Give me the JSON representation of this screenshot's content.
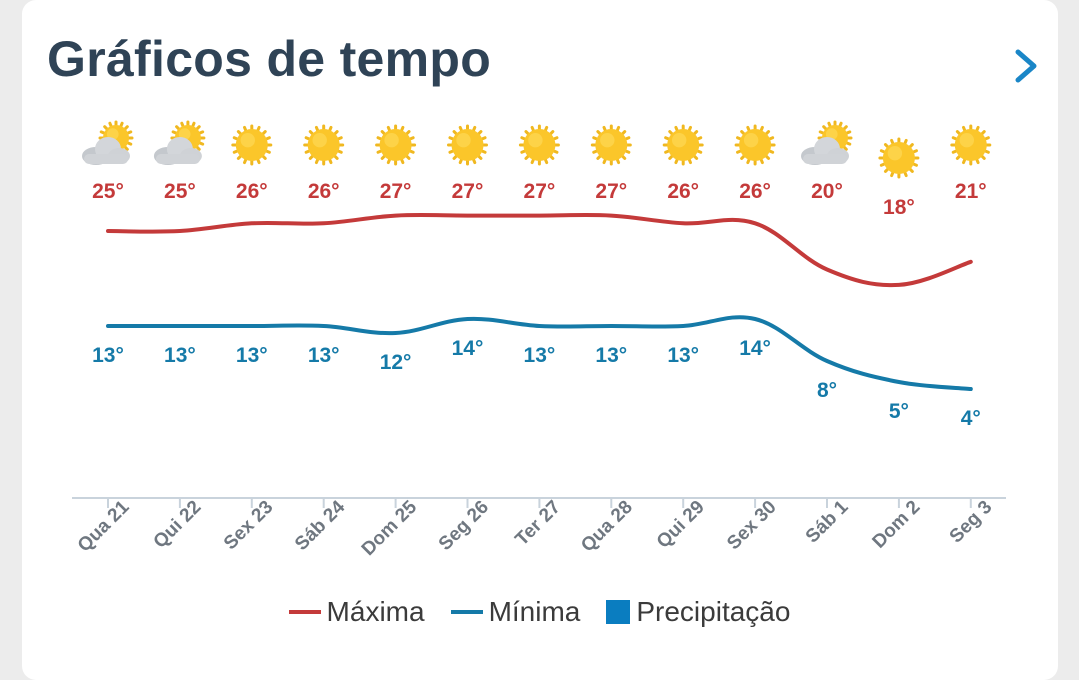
{
  "header": {
    "title": "Gráficos de tempo",
    "next_icon": "chevron-right-icon"
  },
  "colors": {
    "max": "#c43a3a",
    "min": "#157aa8",
    "precip": "#0a7dc0",
    "axis": "#c9d3dc",
    "title": "#2f4356"
  },
  "chart_data": {
    "type": "line",
    "categories": [
      "Qua 21",
      "Qui 22",
      "Sex 23",
      "Sáb 24",
      "Dom 25",
      "Seg 26",
      "Ter 27",
      "Qua 28",
      "Qui 29",
      "Sex 30",
      "Sáb 1",
      "Dom 2",
      "Seg 3"
    ],
    "icons": [
      "partly-cloudy",
      "partly-cloudy",
      "sunny",
      "sunny",
      "sunny",
      "sunny",
      "sunny",
      "sunny",
      "sunny",
      "sunny",
      "partly-cloudy",
      "sunny",
      "sunny"
    ],
    "series": [
      {
        "name": "Máxima",
        "values": [
          25,
          25,
          26,
          26,
          27,
          27,
          27,
          27,
          26,
          26,
          20,
          18,
          21
        ],
        "labels": [
          "25°",
          "25°",
          "26°",
          "26°",
          "27°",
          "27°",
          "27°",
          "27°",
          "26°",
          "26°",
          "20°",
          "18°",
          "21°"
        ]
      },
      {
        "name": "Mínima",
        "values": [
          13,
          13,
          13,
          13,
          12,
          14,
          13,
          13,
          13,
          14,
          8,
          5,
          4
        ],
        "labels": [
          "13°",
          "13°",
          "13°",
          "13°",
          "12°",
          "14°",
          "13°",
          "13°",
          "13°",
          "14°",
          "8°",
          "5°",
          "4°"
        ]
      }
    ],
    "legend": [
      "Máxima",
      "Mínima",
      "Precipitação"
    ],
    "legend_position": "bottom"
  }
}
